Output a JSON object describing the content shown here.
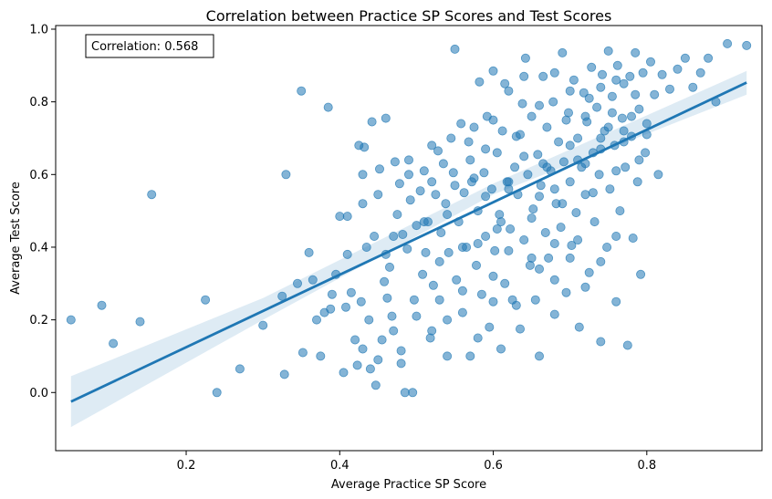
{
  "chart_data": {
    "type": "scatter",
    "title": "Correlation between Practice SP Scores and Test Scores",
    "xlabel": "Average Practice SP Score",
    "ylabel": "Average Test Score",
    "xlim": [
      0.03,
      0.95
    ],
    "ylim": [
      -0.16,
      1.01
    ],
    "xticks": [
      "0.2",
      "0.4",
      "0.6",
      "0.8"
    ],
    "yticks": [
      "0.0",
      "0.2",
      "0.4",
      "0.6",
      "0.8",
      "1.0"
    ],
    "grid": false,
    "annotation": "Correlation: 0.568",
    "colors": {
      "points": "#1f77b4",
      "line": "#1f77b4",
      "band": "#1f77b4"
    },
    "regression": {
      "x": [
        0.05,
        0.93
      ],
      "y": [
        -0.025,
        0.853
      ]
    },
    "confidence_band": {
      "x": [
        0.05,
        0.3,
        0.6,
        0.93
      ],
      "lower": [
        -0.095,
        0.2,
        0.545,
        0.82
      ],
      "upper": [
        0.045,
        0.26,
        0.575,
        0.885
      ]
    },
    "points": [
      [
        0.05,
        0.2
      ],
      [
        0.09,
        0.24
      ],
      [
        0.105,
        0.135
      ],
      [
        0.14,
        0.195
      ],
      [
        0.155,
        0.545
      ],
      [
        0.225,
        0.255
      ],
      [
        0.24,
        0.0
      ],
      [
        0.27,
        0.065
      ],
      [
        0.3,
        0.185
      ],
      [
        0.325,
        0.265
      ],
      [
        0.328,
        0.05
      ],
      [
        0.33,
        0.6
      ],
      [
        0.345,
        0.3
      ],
      [
        0.35,
        0.83
      ],
      [
        0.352,
        0.11
      ],
      [
        0.36,
        0.385
      ],
      [
        0.365,
        0.31
      ],
      [
        0.37,
        0.2
      ],
      [
        0.375,
        0.1
      ],
      [
        0.38,
        0.22
      ],
      [
        0.385,
        0.785
      ],
      [
        0.388,
        0.23
      ],
      [
        0.39,
        0.27
      ],
      [
        0.395,
        0.325
      ],
      [
        0.4,
        0.485
      ],
      [
        0.405,
        0.055
      ],
      [
        0.408,
        0.235
      ],
      [
        0.41,
        0.38
      ],
      [
        0.415,
        0.275
      ],
      [
        0.42,
        0.145
      ],
      [
        0.423,
        0.075
      ],
      [
        0.425,
        0.68
      ],
      [
        0.428,
        0.25
      ],
      [
        0.43,
        0.52
      ],
      [
        0.432,
        0.675
      ],
      [
        0.435,
        0.4
      ],
      [
        0.438,
        0.2
      ],
      [
        0.44,
        0.065
      ],
      [
        0.442,
        0.745
      ],
      [
        0.445,
        0.43
      ],
      [
        0.447,
        0.02
      ],
      [
        0.45,
        0.545
      ],
      [
        0.452,
        0.615
      ],
      [
        0.455,
        0.145
      ],
      [
        0.458,
        0.305
      ],
      [
        0.46,
        0.755
      ],
      [
        0.462,
        0.26
      ],
      [
        0.465,
        0.345
      ],
      [
        0.468,
        0.21
      ],
      [
        0.47,
        0.43
      ],
      [
        0.472,
        0.635
      ],
      [
        0.475,
        0.49
      ],
      [
        0.478,
        0.575
      ],
      [
        0.48,
        0.115
      ],
      [
        0.482,
        0.435
      ],
      [
        0.485,
        0.0
      ],
      [
        0.488,
        0.395
      ],
      [
        0.49,
        0.64
      ],
      [
        0.492,
        0.53
      ],
      [
        0.495,
        0.0
      ],
      [
        0.497,
        0.255
      ],
      [
        0.5,
        0.46
      ],
      [
        0.505,
        0.555
      ],
      [
        0.508,
        0.325
      ],
      [
        0.51,
        0.61
      ],
      [
        0.512,
        0.385
      ],
      [
        0.515,
        0.47
      ],
      [
        0.518,
        0.15
      ],
      [
        0.52,
        0.68
      ],
      [
        0.522,
        0.295
      ],
      [
        0.525,
        0.545
      ],
      [
        0.528,
        0.665
      ],
      [
        0.53,
        0.255
      ],
      [
        0.532,
        0.44
      ],
      [
        0.535,
        0.63
      ],
      [
        0.538,
        0.52
      ],
      [
        0.54,
        0.2
      ],
      [
        0.542,
        0.385
      ],
      [
        0.545,
        0.7
      ],
      [
        0.548,
        0.605
      ],
      [
        0.55,
        0.945
      ],
      [
        0.552,
        0.31
      ],
      [
        0.555,
        0.47
      ],
      [
        0.558,
        0.74
      ],
      [
        0.56,
        0.22
      ],
      [
        0.562,
        0.55
      ],
      [
        0.565,
        0.4
      ],
      [
        0.568,
        0.69
      ],
      [
        0.57,
        0.1
      ],
      [
        0.572,
        0.58
      ],
      [
        0.575,
        0.73
      ],
      [
        0.578,
        0.35
      ],
      [
        0.58,
        0.5
      ],
      [
        0.582,
        0.855
      ],
      [
        0.585,
        0.27
      ],
      [
        0.588,
        0.605
      ],
      [
        0.59,
        0.43
      ],
      [
        0.592,
        0.76
      ],
      [
        0.595,
        0.18
      ],
      [
        0.598,
        0.56
      ],
      [
        0.6,
        0.885
      ],
      [
        0.602,
        0.39
      ],
      [
        0.605,
        0.66
      ],
      [
        0.608,
        0.49
      ],
      [
        0.61,
        0.12
      ],
      [
        0.612,
        0.72
      ],
      [
        0.615,
        0.3
      ],
      [
        0.618,
        0.58
      ],
      [
        0.62,
        0.83
      ],
      [
        0.622,
        0.45
      ],
      [
        0.625,
        0.255
      ],
      [
        0.628,
        0.62
      ],
      [
        0.63,
        0.705
      ],
      [
        0.632,
        0.545
      ],
      [
        0.635,
        0.175
      ],
      [
        0.638,
        0.795
      ],
      [
        0.64,
        0.42
      ],
      [
        0.642,
        0.92
      ],
      [
        0.645,
        0.6
      ],
      [
        0.648,
        0.35
      ],
      [
        0.65,
        0.76
      ],
      [
        0.652,
        0.505
      ],
      [
        0.655,
        0.255
      ],
      [
        0.658,
        0.655
      ],
      [
        0.66,
        0.1
      ],
      [
        0.662,
        0.57
      ],
      [
        0.665,
        0.87
      ],
      [
        0.668,
        0.44
      ],
      [
        0.67,
        0.73
      ],
      [
        0.672,
        0.37
      ],
      [
        0.675,
        0.61
      ],
      [
        0.678,
        0.8
      ],
      [
        0.68,
        0.215
      ],
      [
        0.682,
        0.52
      ],
      [
        0.685,
        0.69
      ],
      [
        0.688,
        0.455
      ],
      [
        0.69,
        0.935
      ],
      [
        0.692,
        0.635
      ],
      [
        0.695,
        0.275
      ],
      [
        0.698,
        0.77
      ],
      [
        0.7,
        0.58
      ],
      [
        0.702,
        0.405
      ],
      [
        0.705,
        0.86
      ],
      [
        0.708,
        0.495
      ],
      [
        0.71,
        0.7
      ],
      [
        0.712,
        0.18
      ],
      [
        0.715,
        0.62
      ],
      [
        0.718,
        0.825
      ],
      [
        0.72,
        0.545
      ],
      [
        0.722,
        0.745
      ],
      [
        0.725,
        0.33
      ],
      [
        0.728,
        0.895
      ],
      [
        0.73,
        0.66
      ],
      [
        0.732,
        0.47
      ],
      [
        0.735,
        0.785
      ],
      [
        0.738,
        0.6
      ],
      [
        0.74,
        0.14
      ],
      [
        0.742,
        0.875
      ],
      [
        0.745,
        0.72
      ],
      [
        0.748,
        0.4
      ],
      [
        0.75,
        0.94
      ],
      [
        0.752,
        0.56
      ],
      [
        0.755,
        0.815
      ],
      [
        0.758,
        0.68
      ],
      [
        0.76,
        0.25
      ],
      [
        0.762,
        0.9
      ],
      [
        0.765,
        0.5
      ],
      [
        0.768,
        0.755
      ],
      [
        0.77,
        0.85
      ],
      [
        0.772,
        0.62
      ],
      [
        0.775,
        0.13
      ],
      [
        0.778,
        0.87
      ],
      [
        0.78,
        0.705
      ],
      [
        0.782,
        0.425
      ],
      [
        0.785,
        0.935
      ],
      [
        0.788,
        0.58
      ],
      [
        0.79,
        0.78
      ],
      [
        0.792,
        0.325
      ],
      [
        0.795,
        0.88
      ],
      [
        0.798,
        0.66
      ],
      [
        0.8,
        0.74
      ],
      [
        0.805,
        0.91
      ],
      [
        0.81,
        0.82
      ],
      [
        0.815,
        0.6
      ],
      [
        0.82,
        0.875
      ],
      [
        0.83,
        0.835
      ],
      [
        0.84,
        0.89
      ],
      [
        0.85,
        0.92
      ],
      [
        0.86,
        0.84
      ],
      [
        0.87,
        0.88
      ],
      [
        0.88,
        0.92
      ],
      [
        0.89,
        0.8
      ],
      [
        0.905,
        0.96
      ],
      [
        0.93,
        0.955
      ],
      [
        0.41,
        0.485
      ],
      [
        0.43,
        0.6
      ],
      [
        0.46,
        0.38
      ],
      [
        0.47,
        0.17
      ],
      [
        0.49,
        0.6
      ],
      [
        0.5,
        0.21
      ],
      [
        0.51,
        0.47
      ],
      [
        0.52,
        0.58
      ],
      [
        0.53,
        0.36
      ],
      [
        0.54,
        0.49
      ],
      [
        0.55,
        0.57
      ],
      [
        0.56,
        0.28
      ],
      [
        0.57,
        0.64
      ],
      [
        0.58,
        0.41
      ],
      [
        0.59,
        0.54
      ],
      [
        0.6,
        0.32
      ],
      [
        0.61,
        0.47
      ],
      [
        0.62,
        0.58
      ],
      [
        0.63,
        0.24
      ],
      [
        0.64,
        0.65
      ],
      [
        0.65,
        0.37
      ],
      [
        0.66,
        0.54
      ],
      [
        0.67,
        0.62
      ],
      [
        0.68,
        0.31
      ],
      [
        0.69,
        0.52
      ],
      [
        0.7,
        0.68
      ],
      [
        0.71,
        0.42
      ],
      [
        0.72,
        0.63
      ],
      [
        0.73,
        0.55
      ],
      [
        0.74,
        0.67
      ],
      [
        0.75,
        0.73
      ],
      [
        0.76,
        0.61
      ],
      [
        0.77,
        0.69
      ],
      [
        0.78,
        0.76
      ],
      [
        0.79,
        0.64
      ],
      [
        0.8,
        0.71
      ],
      [
        0.56,
        0.4
      ],
      [
        0.575,
        0.59
      ],
      [
        0.59,
        0.67
      ],
      [
        0.605,
        0.45
      ],
      [
        0.62,
        0.56
      ],
      [
        0.635,
        0.71
      ],
      [
        0.65,
        0.48
      ],
      [
        0.665,
        0.63
      ],
      [
        0.68,
        0.56
      ],
      [
        0.695,
        0.75
      ],
      [
        0.71,
        0.64
      ],
      [
        0.725,
        0.81
      ],
      [
        0.74,
        0.7
      ],
      [
        0.755,
        0.77
      ],
      [
        0.77,
        0.72
      ],
      [
        0.785,
        0.82
      ],
      [
        0.6,
        0.75
      ],
      [
        0.615,
        0.85
      ],
      [
        0.64,
        0.87
      ],
      [
        0.66,
        0.79
      ],
      [
        0.68,
        0.88
      ],
      [
        0.7,
        0.83
      ],
      [
        0.72,
        0.76
      ],
      [
        0.74,
        0.84
      ],
      [
        0.76,
        0.86
      ],
      [
        0.66,
        0.34
      ],
      [
        0.68,
        0.41
      ],
      [
        0.7,
        0.37
      ],
      [
        0.72,
        0.29
      ],
      [
        0.74,
        0.36
      ],
      [
        0.76,
        0.43
      ],
      [
        0.62,
        0.39
      ],
      [
        0.6,
        0.25
      ],
      [
        0.58,
        0.15
      ],
      [
        0.54,
        0.1
      ],
      [
        0.52,
        0.17
      ],
      [
        0.48,
        0.08
      ],
      [
        0.45,
        0.09
      ],
      [
        0.43,
        0.12
      ]
    ]
  }
}
